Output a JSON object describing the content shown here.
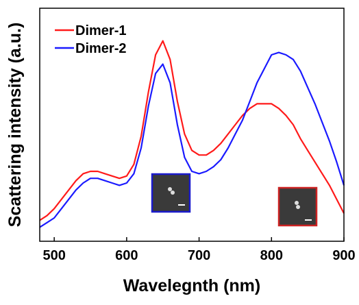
{
  "chart_data": {
    "type": "line",
    "x_label": "Wavelegnth (nm)",
    "y_label": "Scattering intensity (a.u.)",
    "x": [
      480,
      490,
      500,
      510,
      520,
      530,
      540,
      550,
      560,
      570,
      580,
      590,
      600,
      610,
      620,
      630,
      640,
      650,
      660,
      670,
      680,
      690,
      700,
      710,
      720,
      730,
      740,
      750,
      760,
      770,
      780,
      790,
      800,
      810,
      820,
      830,
      840,
      850,
      860,
      870,
      880,
      890,
      900
    ],
    "series": [
      {
        "name": "Dimer-1",
        "color": "#ff1a1a",
        "values": [
          9,
          11,
          14,
          18,
          22,
          26,
          29,
          30,
          30,
          29,
          28,
          27,
          28,
          33,
          45,
          64,
          80,
          86,
          78,
          60,
          46,
          39,
          37,
          37,
          39,
          42,
          46,
          50,
          54,
          57,
          59,
          59,
          59,
          57,
          54,
          50,
          44,
          39,
          34,
          29,
          24,
          18,
          12
        ]
      },
      {
        "name": "Dimer-2",
        "color": "#1a1aff",
        "values": [
          6,
          8,
          10,
          14,
          18,
          22,
          25,
          27,
          27,
          26,
          25,
          24,
          25,
          29,
          40,
          58,
          72,
          76,
          68,
          50,
          36,
          30,
          29,
          30,
          32,
          35,
          40,
          46,
          52,
          60,
          68,
          74,
          80,
          81,
          80,
          78,
          73,
          66,
          59,
          51,
          43,
          34,
          24
        ]
      }
    ],
    "xlim": [
      480,
      900
    ],
    "xticks": [
      500,
      600,
      700,
      800,
      900
    ],
    "ylim": [
      0,
      100
    ],
    "legend": "upper-left"
  }
}
